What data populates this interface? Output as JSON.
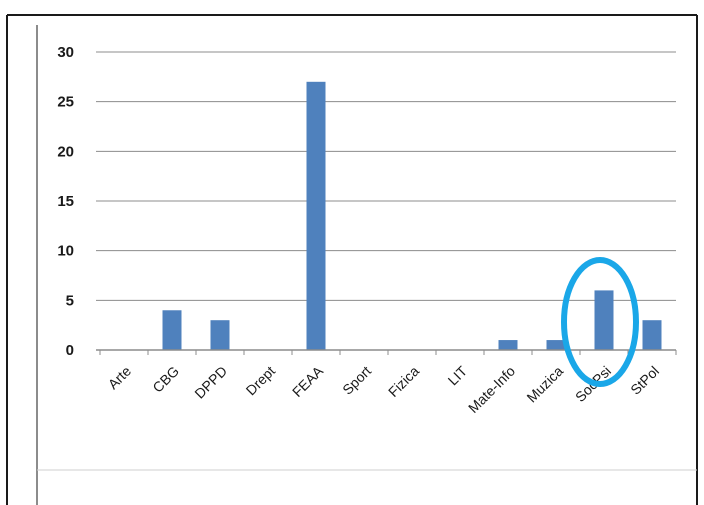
{
  "chart_data": {
    "type": "bar",
    "categories": [
      "Arte",
      "CBG",
      "DPPD",
      "Drept",
      "FEAA",
      "Sport",
      "Fizica",
      "LIT",
      "Mate-Info",
      "Muzica",
      "SocPsi",
      "StPol"
    ],
    "values": [
      0,
      4,
      3,
      0,
      27,
      0,
      0,
      0,
      1,
      1,
      6,
      3
    ],
    "y_ticks": [
      "0",
      "5",
      "10",
      "15",
      "20",
      "25",
      "30"
    ],
    "ylim": [
      0,
      30
    ],
    "grid": true,
    "legend": "none",
    "highlight": {
      "category": "SocPsi",
      "shape": "ellipse",
      "color": "#1aa7e8"
    },
    "colors": {
      "bar": "#4f81bd",
      "grid": "#8c8c8c",
      "frame": "#1a1a1a"
    }
  }
}
